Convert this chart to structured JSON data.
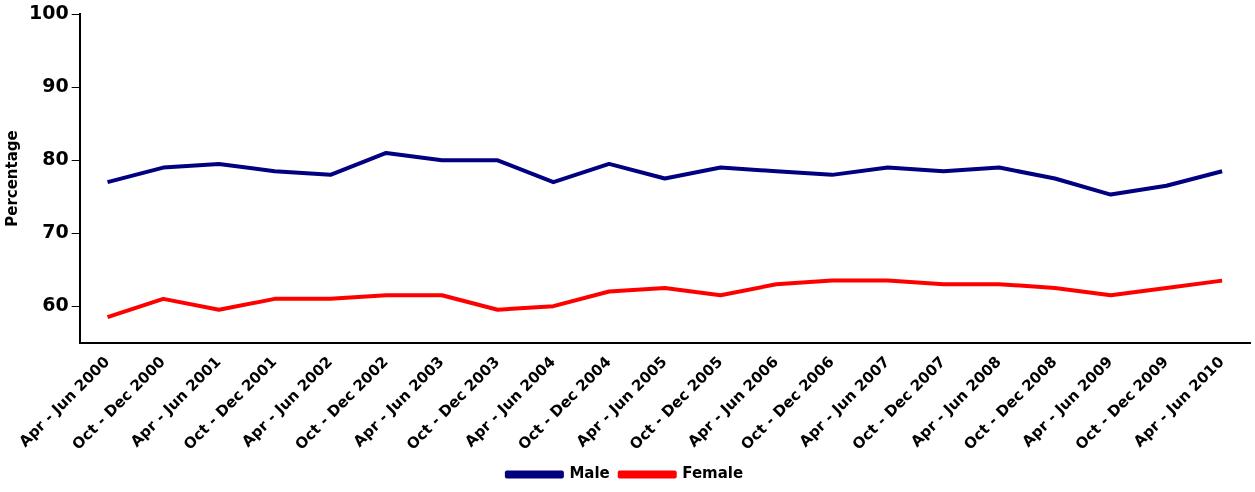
{
  "chart_data": {
    "type": "line",
    "ylabel": "Percentage",
    "categories": [
      "Apr - Jun 2000",
      "Oct - Dec 2000",
      "Apr - Jun 2001",
      "Oct - Dec 2001",
      "Apr - Jun 2002",
      "Oct - Dec 2002",
      "Apr - Jun 2003",
      "Oct - Dec 2003",
      "Apr - Jun 2004",
      "Oct - Dec 2004",
      "Apr - Jun 2005",
      "Oct - Dec 2005",
      "Apr - Jun 2006",
      "Oct - Dec 2006",
      "Apr - Jun 2007",
      "Oct - Dec 2007",
      "Apr - Jun 2008",
      "Oct - Dec 2008",
      "Apr - Jun 2009",
      "Oct - Dec 2009",
      "Apr - Jun 2010"
    ],
    "series": [
      {
        "name": "Male",
        "color": "#000080",
        "values": [
          77,
          79,
          79.5,
          78.5,
          78,
          81,
          80,
          80,
          77,
          79.5,
          77.5,
          79,
          78.5,
          78,
          79,
          78.5,
          79,
          77.5,
          75.3,
          76.5,
          78.5
        ]
      },
      {
        "name": "Female",
        "color": "#ff0000",
        "values": [
          58.5,
          61,
          59.5,
          61,
          61,
          61.5,
          61.5,
          59.5,
          60,
          62,
          62.5,
          61.5,
          63,
          63.5,
          63.5,
          63,
          63,
          62.5,
          61.5,
          62.5,
          63.5
        ]
      }
    ],
    "ylim": [
      55,
      100
    ],
    "yticks": [
      60,
      70,
      80,
      90,
      100
    ],
    "grid": false,
    "legend": "bottom",
    "marker": "none",
    "line_style": "solid"
  }
}
